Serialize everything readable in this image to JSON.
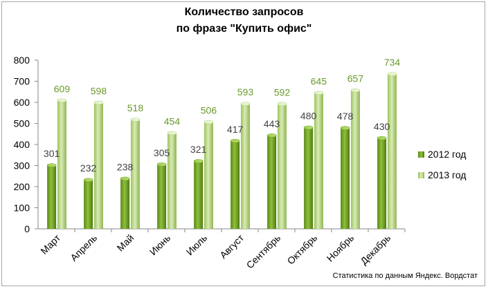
{
  "chart_data": {
    "type": "bar",
    "title_lines": [
      "Количество запросов",
      "по фразе \"Купить офис\""
    ],
    "categories": [
      "Март",
      "Апрель",
      "Май",
      "Июнь",
      "Июль",
      "Август",
      "Сентябрь",
      "Октябрь",
      "Ноябрь",
      "Декабрь"
    ],
    "series": [
      {
        "name": "2012 год",
        "values": [
          301,
          232,
          238,
          305,
          321,
          417,
          443,
          480,
          478,
          430
        ],
        "color": "#6b9a1f",
        "label_color": "#404040"
      },
      {
        "name": "2013 год",
        "values": [
          609,
          598,
          518,
          454,
          506,
          593,
          592,
          645,
          657,
          734
        ],
        "color": "#a9cf6b",
        "label_color": "#6a9a2a"
      }
    ],
    "ylim": [
      0,
      800
    ],
    "yticks": [
      0,
      100,
      200,
      300,
      400,
      500,
      600,
      700,
      800
    ],
    "xlabel": "",
    "ylabel": "",
    "grid": false,
    "legend_position": "right",
    "source_note": "Статистика по данным Яндекс. Вордстат"
  }
}
